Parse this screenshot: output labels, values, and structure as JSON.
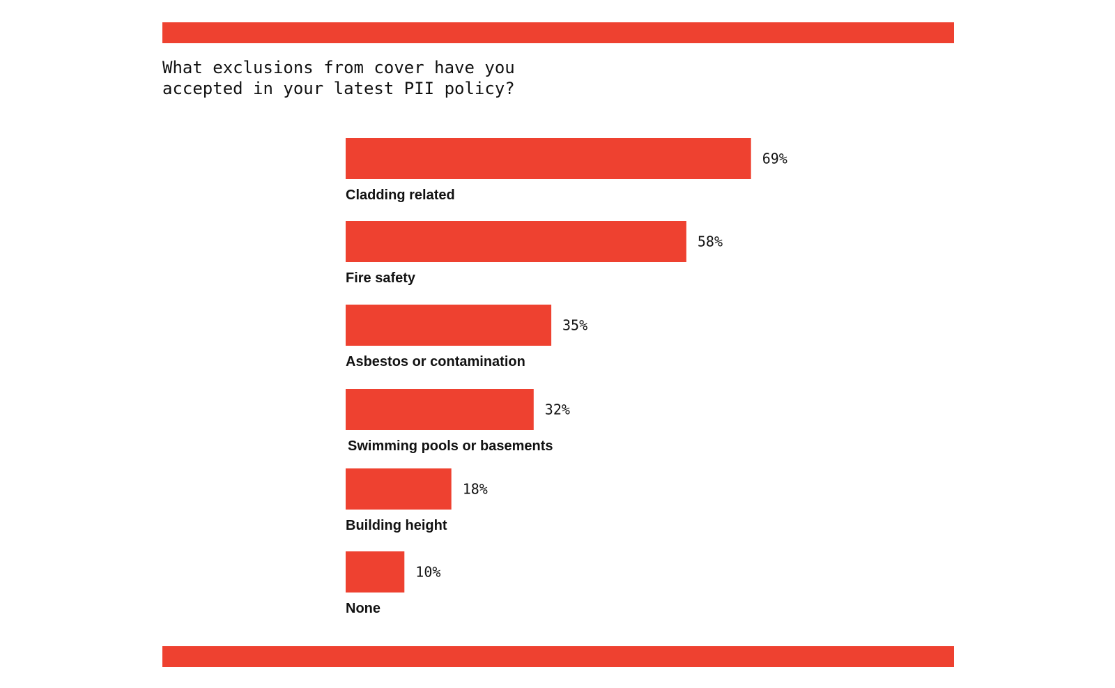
{
  "colors": {
    "accent": "#ee4130",
    "text": "#111111",
    "background": "#ffffff"
  },
  "chart_data": {
    "type": "bar",
    "orientation": "horizontal",
    "title": "What exclusions from cover have you\naccepted in your latest PII policy?",
    "xlabel": "",
    "ylabel": "",
    "categories": [
      "Cladding related",
      "Fire safety",
      "Asbestos or contamination",
      "Swimming pools or basements",
      "Building height",
      "None"
    ],
    "values": [
      69,
      58,
      35,
      32,
      18,
      10
    ],
    "value_labels": [
      "69%",
      "58%",
      "35%",
      "32%",
      "18%",
      "10%"
    ],
    "value_unit": "%",
    "xlim": [
      0,
      100
    ],
    "grid": false,
    "legend": "none"
  }
}
